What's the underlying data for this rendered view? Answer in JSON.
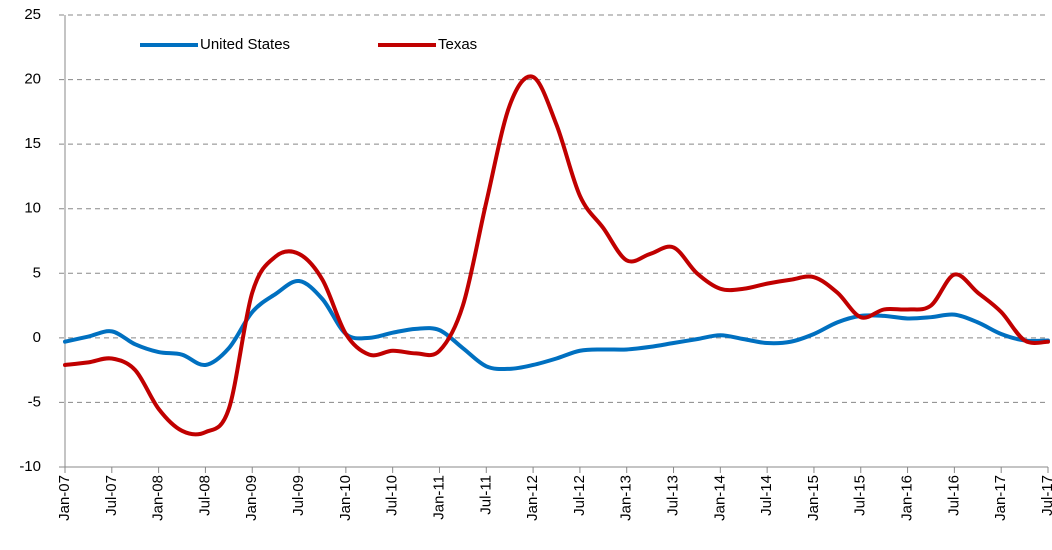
{
  "chart_data": {
    "type": "line",
    "categories": [
      "Jan-07",
      null,
      "Jul-07",
      null,
      "Jan-08",
      null,
      "Jul-08",
      null,
      "Jan-09",
      null,
      "Jul-09",
      null,
      "Jan-10",
      null,
      "Jul-10",
      null,
      "Jan-11",
      null,
      "Jul-11",
      null,
      "Jan-12",
      null,
      "Jul-12",
      null,
      "Jan-13",
      null,
      "Jul-13",
      null,
      "Jan-14",
      null,
      "Jul-14",
      null,
      "Jan-15",
      null,
      "Jul-15",
      null,
      "Jan-16",
      null,
      "Jul-16",
      null,
      "Jan-17",
      null,
      "Jul-17"
    ],
    "series": [
      {
        "name": "United States",
        "color": "#0070c0",
        "values": [
          -0.3,
          0.1,
          0.5,
          -0.5,
          -1.1,
          -1.3,
          -2.1,
          -0.8,
          2.0,
          3.4,
          4.4,
          3.0,
          0.3,
          0.0,
          0.4,
          0.7,
          0.6,
          -0.8,
          -2.2,
          -2.4,
          -2.1,
          -1.6,
          -1.0,
          -0.9,
          -0.9,
          -0.7,
          -0.4,
          -0.1,
          0.2,
          -0.1,
          -0.4,
          -0.3,
          0.3,
          1.2,
          1.7,
          1.7,
          1.5,
          1.6,
          1.8,
          1.2,
          0.3,
          -0.2,
          -0.2
        ]
      },
      {
        "name": "Texas",
        "color": "#c00000",
        "values": [
          -2.1,
          -1.9,
          -1.6,
          -2.5,
          -5.5,
          -7.2,
          -7.3,
          -5.5,
          3.5,
          6.3,
          6.5,
          4.5,
          0.3,
          -1.3,
          -1.0,
          -1.2,
          -1.0,
          2.5,
          10.5,
          18.0,
          20.2,
          16.5,
          11.0,
          8.5,
          6.0,
          6.5,
          7.0,
          5.0,
          3.8,
          3.8,
          4.2,
          4.5,
          4.7,
          3.5,
          1.6,
          2.2,
          2.2,
          2.5,
          4.9,
          3.5,
          2.0,
          -0.2,
          -0.3
        ]
      }
    ],
    "ylim": [
      -10,
      25
    ],
    "yticks": [
      -10,
      -5,
      0,
      5,
      10,
      15,
      20,
      25
    ],
    "grid": true,
    "legend": "top-left"
  }
}
